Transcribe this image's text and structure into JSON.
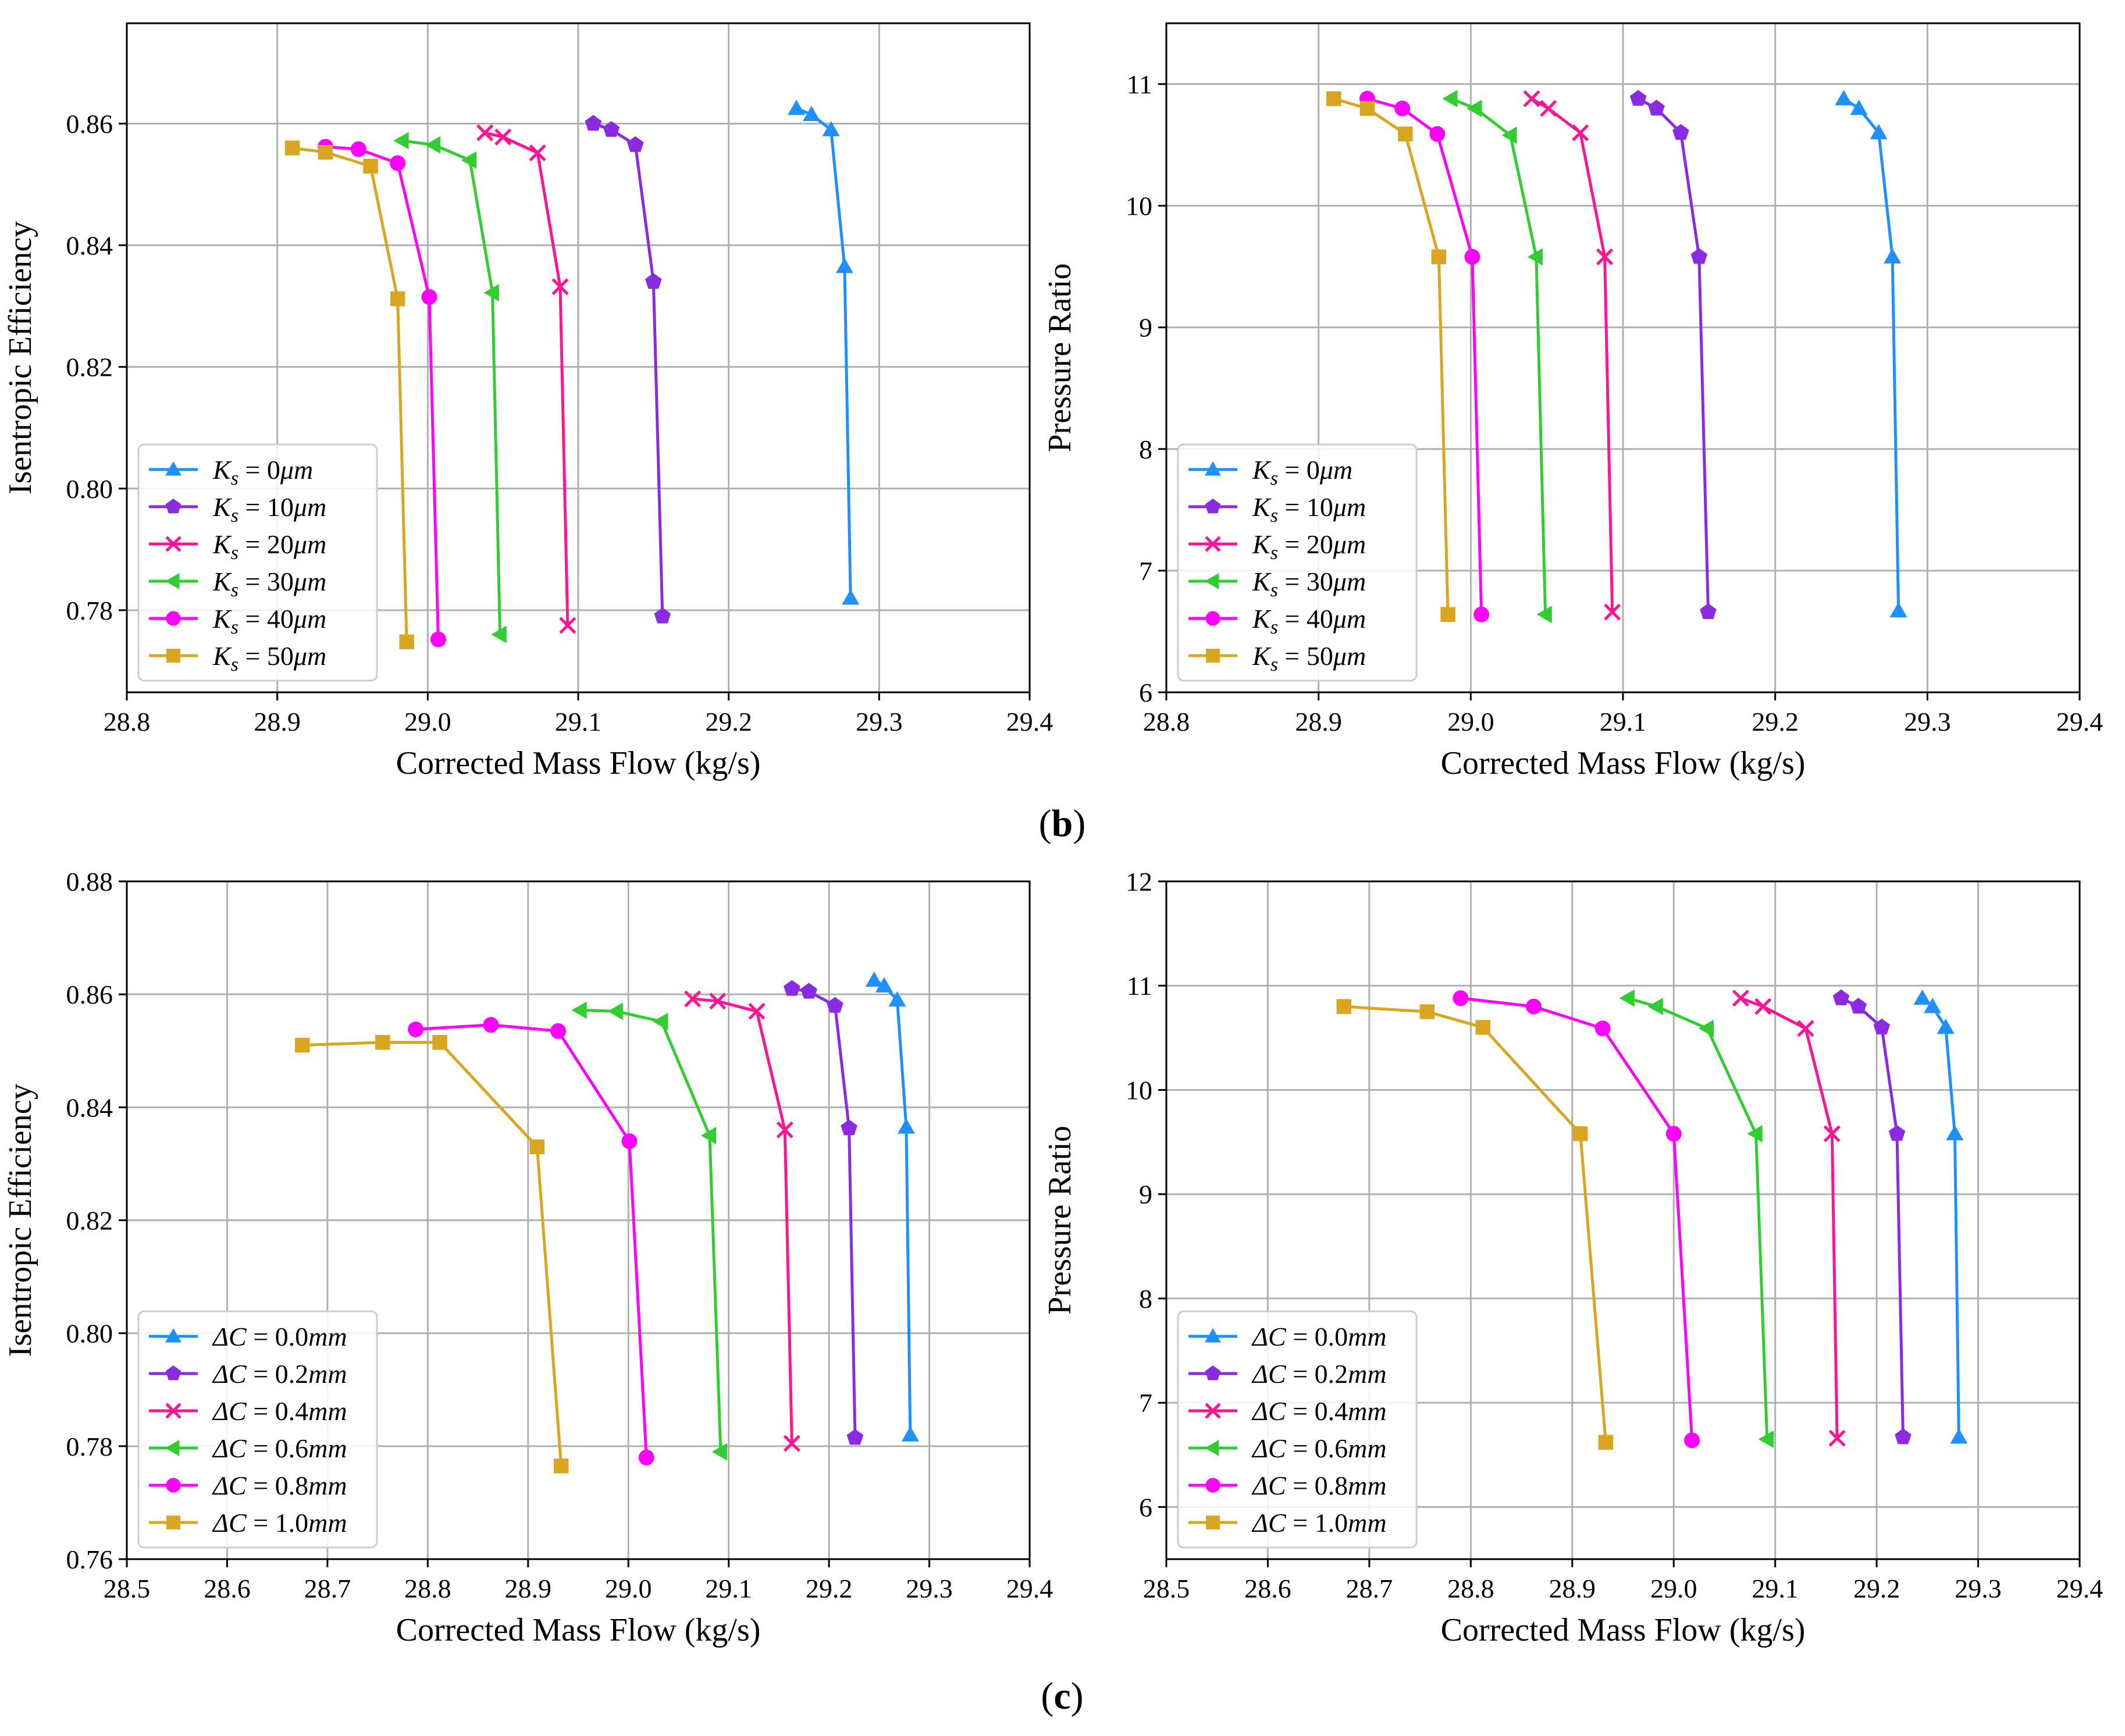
{
  "figure": {
    "captions": [
      {
        "open": "(",
        "letter": "b",
        "close": ")"
      },
      {
        "open": "(",
        "letter": "c",
        "close": ")"
      }
    ]
  },
  "chart_data": [
    {
      "id": "b-efficiency",
      "type": "line",
      "xlabel": "Corrected Mass Flow (kg/s)",
      "ylabel": "Isentropic Efficiency",
      "xlim": [
        28.8,
        29.4
      ],
      "ylim": [
        0.7665,
        0.8765
      ],
      "xticks": [
        "28.8",
        "28.9",
        "29.0",
        "29.1",
        "29.2",
        "29.3",
        "29.4"
      ],
      "yticks": [
        "0.78",
        "0.80",
        "0.82",
        "0.84",
        "0.86"
      ],
      "grid": true,
      "legend": "lower-left",
      "series": [
        {
          "name": "Ks = 0μm",
          "sym": "K",
          "sub": "s",
          "val": " = 0",
          "unit": "μm",
          "color": "#1E90FF",
          "marker": "triangle-up",
          "x": [
            29.245,
            29.255,
            29.268,
            29.277,
            29.281
          ],
          "y": [
            0.8625,
            0.8615,
            0.859,
            0.8365,
            0.782
          ]
        },
        {
          "name": "Ks = 10μm",
          "sym": "K",
          "sub": "s",
          "val": " = 10",
          "unit": "μm",
          "color": "#8A2BE2",
          "marker": "pentagon",
          "x": [
            29.11,
            29.122,
            29.138,
            29.15,
            29.156
          ],
          "y": [
            0.86,
            0.859,
            0.8565,
            0.834,
            0.779
          ]
        },
        {
          "name": "Ks = 20μm",
          "sym": "K",
          "sub": "s",
          "val": " = 20",
          "unit": "μm",
          "color": "#FF1493",
          "marker": "x",
          "x": [
            29.038,
            29.05,
            29.073,
            29.088,
            29.093
          ],
          "y": [
            0.8585,
            0.8578,
            0.8552,
            0.8332,
            0.7775
          ]
        },
        {
          "name": "Ks = 30μm",
          "sym": "K",
          "sub": "s",
          "val": " = 30",
          "unit": "μm",
          "color": "#32CD32",
          "marker": "triangle-left",
          "x": [
            28.983,
            29.004,
            29.028,
            29.043,
            29.048
          ],
          "y": [
            0.8572,
            0.8565,
            0.854,
            0.8322,
            0.776
          ]
        },
        {
          "name": "Ks = 40μm",
          "sym": "K",
          "sub": "s",
          "val": " = 40",
          "unit": "μm",
          "color": "#FF00FF",
          "marker": "circle",
          "x": [
            28.932,
            28.954,
            28.98,
            29.001,
            29.007
          ],
          "y": [
            0.8562,
            0.8558,
            0.8535,
            0.8315,
            0.7752
          ]
        },
        {
          "name": "Ks = 50μm",
          "sym": "K",
          "sub": "s",
          "val": " = 50",
          "unit": "μm",
          "color": "#DAA520",
          "marker": "square",
          "x": [
            28.91,
            28.932,
            28.962,
            28.98,
            28.986
          ],
          "y": [
            0.856,
            0.8553,
            0.853,
            0.8312,
            0.7748
          ]
        }
      ]
    },
    {
      "id": "b-pressure",
      "type": "line",
      "xlabel": "Corrected Mass Flow (kg/s)",
      "ylabel": "Pressure Ratio",
      "xlim": [
        28.8,
        29.4
      ],
      "ylim": [
        6,
        11.5
      ],
      "xticks": [
        "28.8",
        "28.9",
        "29.0",
        "29.1",
        "29.2",
        "29.3",
        "29.4"
      ],
      "yticks": [
        "6",
        "7",
        "8",
        "9",
        "10",
        "11"
      ],
      "grid": true,
      "legend": "lower-left",
      "series": [
        {
          "name": "Ks = 0μm",
          "sym": "K",
          "sub": "s",
          "val": " = 0",
          "unit": "μm",
          "color": "#1E90FF",
          "marker": "triangle-up",
          "x": [
            29.245,
            29.255,
            29.268,
            29.277,
            29.281
          ],
          "y": [
            10.88,
            10.8,
            10.6,
            9.58,
            6.67
          ]
        },
        {
          "name": "Ks = 10μm",
          "sym": "K",
          "sub": "s",
          "val": " = 10",
          "unit": "μm",
          "color": "#8A2BE2",
          "marker": "pentagon",
          "x": [
            29.11,
            29.122,
            29.138,
            29.15,
            29.156
          ],
          "y": [
            10.88,
            10.8,
            10.6,
            9.58,
            6.66
          ]
        },
        {
          "name": "Ks = 20μm",
          "sym": "K",
          "sub": "s",
          "val": " = 20",
          "unit": "μm",
          "color": "#FF1493",
          "marker": "x",
          "x": [
            29.04,
            29.051,
            29.072,
            29.088,
            29.093
          ],
          "y": [
            10.88,
            10.8,
            10.6,
            9.58,
            6.66
          ]
        },
        {
          "name": "Ks = 30μm",
          "sym": "K",
          "sub": "s",
          "val": " = 30",
          "unit": "μm",
          "color": "#32CD32",
          "marker": "triangle-left",
          "x": [
            28.987,
            29.003,
            29.026,
            29.043,
            29.049
          ],
          "y": [
            10.88,
            10.8,
            10.58,
            9.58,
            6.64
          ]
        },
        {
          "name": "Ks = 40μm",
          "sym": "K",
          "sub": "s",
          "val": " = 40",
          "unit": "μm",
          "color": "#FF00FF",
          "marker": "circle",
          "x": [
            28.932,
            28.955,
            28.978,
            29.001,
            29.007
          ],
          "y": [
            10.88,
            10.8,
            10.59,
            9.58,
            6.64
          ]
        },
        {
          "name": "Ks = 50μm",
          "sym": "K",
          "sub": "s",
          "val": " = 50",
          "unit": "μm",
          "color": "#DAA520",
          "marker": "square",
          "x": [
            28.91,
            28.932,
            28.957,
            28.979,
            28.985
          ],
          "y": [
            10.88,
            10.8,
            10.59,
            9.58,
            6.64
          ]
        }
      ]
    },
    {
      "id": "c-efficiency",
      "type": "line",
      "xlabel": "Corrected Mass Flow (kg/s)",
      "ylabel": "Isentropic Efficiency",
      "xlim": [
        28.5,
        29.4
      ],
      "ylim": [
        0.76,
        0.88
      ],
      "xticks": [
        "28.5",
        "28.6",
        "28.7",
        "28.8",
        "28.9",
        "29.0",
        "29.1",
        "29.2",
        "29.3",
        "29.4"
      ],
      "yticks": [
        "0.76",
        "0.78",
        "0.80",
        "0.82",
        "0.84",
        "0.86",
        "0.88"
      ],
      "grid": true,
      "legend": "lower-left",
      "series": [
        {
          "name": "ΔC = 0.0mm",
          "sym": "ΔC",
          "sub": "",
          "val": " = 0.0",
          "unit": "mm",
          "color": "#1E90FF",
          "marker": "triangle-up",
          "x": [
            29.245,
            29.255,
            29.268,
            29.277,
            29.281
          ],
          "y": [
            0.8625,
            0.8615,
            0.859,
            0.8365,
            0.782
          ]
        },
        {
          "name": "ΔC = 0.2mm",
          "sym": "ΔC",
          "sub": "",
          "val": " = 0.2",
          "unit": "mm",
          "color": "#8A2BE2",
          "marker": "pentagon",
          "x": [
            29.163,
            29.18,
            29.206,
            29.22,
            29.226
          ],
          "y": [
            0.861,
            0.8605,
            0.858,
            0.8363,
            0.7815
          ]
        },
        {
          "name": "ΔC = 0.4mm",
          "sym": "ΔC",
          "sub": "",
          "val": " = 0.4",
          "unit": "mm",
          "color": "#FF1493",
          "marker": "x",
          "x": [
            29.064,
            29.089,
            29.128,
            29.156,
            29.163
          ],
          "y": [
            0.8592,
            0.8588,
            0.857,
            0.836,
            0.7805
          ]
        },
        {
          "name": "ΔC = 0.6mm",
          "sym": "ΔC",
          "sub": "",
          "val": " = 0.6",
          "unit": "mm",
          "color": "#32CD32",
          "marker": "triangle-left",
          "x": [
            28.952,
            28.988,
            29.033,
            29.081,
            29.092
          ],
          "y": [
            0.8572,
            0.857,
            0.8552,
            0.835,
            0.779
          ]
        },
        {
          "name": "ΔC = 0.8mm",
          "sym": "ΔC",
          "sub": "",
          "val": " = 0.8",
          "unit": "mm",
          "color": "#FF00FF",
          "marker": "circle",
          "x": [
            28.788,
            28.863,
            28.93,
            29.001,
            29.018
          ],
          "y": [
            0.8538,
            0.8546,
            0.8535,
            0.834,
            0.778
          ]
        },
        {
          "name": "ΔC = 1.0mm",
          "sym": "ΔC",
          "sub": "",
          "val": " = 1.0",
          "unit": "mm",
          "color": "#DAA520",
          "marker": "square",
          "x": [
            28.675,
            28.755,
            28.812,
            28.909,
            28.933
          ],
          "y": [
            0.851,
            0.8515,
            0.8515,
            0.833,
            0.7765
          ]
        }
      ]
    },
    {
      "id": "c-pressure",
      "type": "line",
      "xlabel": "Corrected Mass Flow (kg/s)",
      "ylabel": "Pressure Ratio",
      "xlim": [
        28.5,
        29.4
      ],
      "ylim": [
        5.5,
        12
      ],
      "xticks": [
        "28.5",
        "28.6",
        "28.7",
        "28.8",
        "28.9",
        "29.0",
        "29.1",
        "29.2",
        "29.3",
        "29.4"
      ],
      "yticks": [
        "6",
        "7",
        "8",
        "9",
        "10",
        "11",
        "12"
      ],
      "grid": true,
      "legend": "lower-left",
      "series": [
        {
          "name": "ΔC = 0.0mm",
          "sym": "ΔC",
          "sub": "",
          "val": " = 0.0",
          "unit": "mm",
          "color": "#1E90FF",
          "marker": "triangle-up",
          "x": [
            29.245,
            29.255,
            29.268,
            29.277,
            29.281
          ],
          "y": [
            10.88,
            10.8,
            10.6,
            9.58,
            6.67
          ]
        },
        {
          "name": "ΔC = 0.2mm",
          "sym": "ΔC",
          "sub": "",
          "val": " = 0.2",
          "unit": "mm",
          "color": "#8A2BE2",
          "marker": "pentagon",
          "x": [
            29.165,
            29.182,
            29.205,
            29.22,
            29.226
          ],
          "y": [
            10.88,
            10.8,
            10.6,
            9.58,
            6.67
          ]
        },
        {
          "name": "ΔC = 0.4mm",
          "sym": "ΔC",
          "sub": "",
          "val": " = 0.4",
          "unit": "mm",
          "color": "#FF1493",
          "marker": "x",
          "x": [
            29.066,
            29.088,
            29.13,
            29.156,
            29.161
          ],
          "y": [
            10.88,
            10.8,
            10.59,
            9.58,
            6.66
          ]
        },
        {
          "name": "ΔC = 0.6mm",
          "sym": "ΔC",
          "sub": "",
          "val": " = 0.6",
          "unit": "mm",
          "color": "#32CD32",
          "marker": "triangle-left",
          "x": [
            28.955,
            28.983,
            29.033,
            29.081,
            29.092
          ],
          "y": [
            10.88,
            10.8,
            10.59,
            9.58,
            6.65
          ]
        },
        {
          "name": "ΔC = 0.8mm",
          "sym": "ΔC",
          "sub": "",
          "val": " = 0.8",
          "unit": "mm",
          "color": "#FF00FF",
          "marker": "circle",
          "x": [
            28.79,
            28.862,
            28.93,
            29.0,
            29.018
          ],
          "y": [
            10.88,
            10.8,
            10.59,
            9.58,
            6.64
          ]
        },
        {
          "name": "ΔC = 1.0mm",
          "sym": "ΔC",
          "sub": "",
          "val": " = 1.0",
          "unit": "mm",
          "color": "#DAA520",
          "marker": "square",
          "x": [
            28.675,
            28.757,
            28.812,
            28.908,
            28.933
          ],
          "y": [
            10.8,
            10.75,
            10.6,
            9.58,
            6.62
          ]
        }
      ]
    }
  ]
}
